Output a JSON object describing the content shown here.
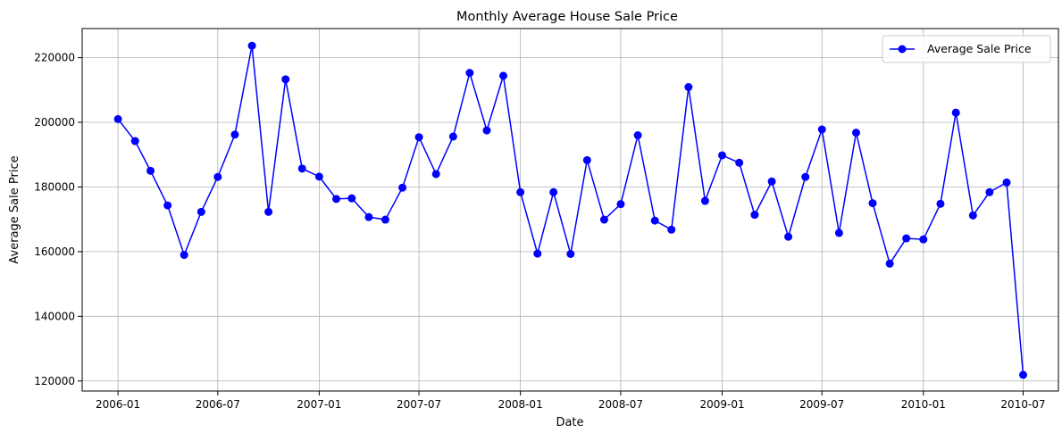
{
  "chart_data": {
    "type": "line",
    "title": "Monthly Average House Sale Price",
    "xlabel": "Date",
    "ylabel": "Average Sale Price",
    "x_ticks": [
      "2006-01",
      "2006-07",
      "2007-01",
      "2007-07",
      "2008-01",
      "2008-07",
      "2009-01",
      "2009-07",
      "2010-01",
      "2010-07"
    ],
    "y_ticks": [
      120000,
      140000,
      160000,
      180000,
      200000,
      220000
    ],
    "xlim": [
      "2005-10-28",
      "2010-09-03"
    ],
    "ylim": [
      116900,
      229000
    ],
    "grid": true,
    "legend_position": "top-right",
    "colors": {
      "line": "#0000ff",
      "marker": "#0000ff",
      "grid": "#b0b0b0"
    },
    "series": [
      {
        "name": "Average Sale Price",
        "x": [
          "2006-01",
          "2006-02",
          "2006-03",
          "2006-04",
          "2006-05",
          "2006-06",
          "2006-07",
          "2006-08",
          "2006-09",
          "2006-10",
          "2006-11",
          "2006-12",
          "2007-01",
          "2007-02",
          "2007-03",
          "2007-04",
          "2007-05",
          "2007-06",
          "2007-07",
          "2007-08",
          "2007-09",
          "2007-10",
          "2007-11",
          "2007-12",
          "2008-01",
          "2008-02",
          "2008-03",
          "2008-04",
          "2008-05",
          "2008-06",
          "2008-07",
          "2008-08",
          "2008-09",
          "2008-10",
          "2008-11",
          "2008-12",
          "2009-01",
          "2009-02",
          "2009-03",
          "2009-04",
          "2009-05",
          "2009-06",
          "2009-07",
          "2009-08",
          "2009-09",
          "2009-10",
          "2009-11",
          "2009-12",
          "2010-01",
          "2010-02",
          "2010-03",
          "2010-04",
          "2010-05",
          "2010-06",
          "2010-07"
        ],
        "values": [
          201000,
          194200,
          185000,
          174300,
          159000,
          172300,
          183100,
          196200,
          223700,
          172300,
          213300,
          185700,
          183200,
          176300,
          176500,
          170700,
          169900,
          179800,
          195400,
          184000,
          195600,
          215300,
          197500,
          214400,
          178400,
          159400,
          178400,
          159300,
          188300,
          169900,
          174700,
          196000,
          169600,
          166800,
          210900,
          175700,
          189800,
          187500,
          171400,
          181700,
          164600,
          183100,
          197800,
          165800,
          196800,
          175000,
          156300,
          164100,
          163800,
          174800,
          203000,
          171200,
          178400,
          181400,
          121900
        ]
      }
    ]
  }
}
